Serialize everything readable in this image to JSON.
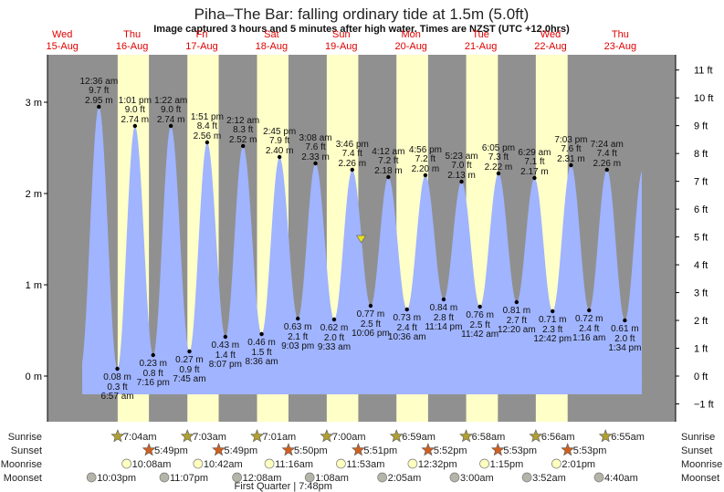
{
  "title": "Piha–The Bar: falling  ordinary tide at 1.5m (5.0ft)",
  "subtitle": "Image captured 3 hours and 5 minutes after high water. Times are NZST (UTC +12.0hrs)",
  "colors": {
    "night": "#909090",
    "day": "#ffffc8",
    "water": "#a0b4ff",
    "day_label": "#e00000",
    "sunrise": "#b0a030",
    "sunset": "#d06020",
    "moonrise": "#ffffc0",
    "moonset": "#b4b4a8",
    "marker": "#e8e020"
  },
  "days": [
    {
      "name": "Wed",
      "date": "15-Aug"
    },
    {
      "name": "Thu",
      "date": "16-Aug"
    },
    {
      "name": "Fri",
      "date": "17-Aug"
    },
    {
      "name": "Sat",
      "date": "18-Aug"
    },
    {
      "name": "Sun",
      "date": "19-Aug"
    },
    {
      "name": "Mon",
      "date": "20-Aug"
    },
    {
      "name": "Tue",
      "date": "21-Aug"
    },
    {
      "name": "Wed",
      "date": "22-Aug"
    },
    {
      "name": "Thu",
      "date": "23-Aug"
    }
  ],
  "chart_data": {
    "type": "area",
    "title": "Piha–The Bar: falling  ordinary tide at 1.5m (5.0ft)",
    "left_axis": {
      "unit": "m",
      "ticks": [
        "-1",
        "0 m",
        "1 m",
        "2 m",
        "3 m"
      ],
      "values": [
        0,
        1,
        2,
        3
      ],
      "ylim": [
        -0.5,
        3.5
      ]
    },
    "right_axis": {
      "unit": "ft",
      "ticks": [
        "−1 ft",
        "0 ft",
        "1 ft",
        "2 ft",
        "3 ft",
        "4 ft",
        "5 ft",
        "6 ft",
        "7 ft",
        "8 ft",
        "9 ft",
        "10 ft",
        "11 ft"
      ],
      "values": [
        -1,
        0,
        1,
        2,
        3,
        4,
        5,
        6,
        7,
        8,
        9,
        10,
        11
      ]
    },
    "current": {
      "height_m": 1.5,
      "day": 4,
      "time": "6:51pm",
      "state": "falling"
    },
    "extremes": [
      {
        "type": "high",
        "day": 1,
        "time": "12:36 am",
        "m": "2.95 m",
        "ft": "9.7 ft",
        "v": 2.95
      },
      {
        "type": "low",
        "day": 1,
        "time": "6:57 am",
        "m": "0.08 m",
        "ft": "0.3 ft",
        "v": 0.08
      },
      {
        "type": "high",
        "day": 1,
        "time": "1:01 pm",
        "m": "2.74 m",
        "ft": "9.0 ft",
        "v": 2.74
      },
      {
        "type": "low",
        "day": 1,
        "time": "7:16 pm",
        "m": "0.23 m",
        "ft": "0.8 ft",
        "v": 0.23
      },
      {
        "type": "high",
        "day": 2,
        "time": "1:22 am",
        "m": "2.74 m",
        "ft": "9.0 ft",
        "v": 2.74
      },
      {
        "type": "low",
        "day": 2,
        "time": "7:45 am",
        "m": "0.27 m",
        "ft": "0.9 ft",
        "v": 0.27
      },
      {
        "type": "high",
        "day": 2,
        "time": "1:51 pm",
        "m": "2.56 m",
        "ft": "8.4 ft",
        "v": 2.56
      },
      {
        "type": "low",
        "day": 2,
        "time": "8:07 pm",
        "m": "0.43 m",
        "ft": "1.4 ft",
        "v": 0.43
      },
      {
        "type": "high",
        "day": 3,
        "time": "2:12 am",
        "m": "2.52 m",
        "ft": "8.3 ft",
        "v": 2.52
      },
      {
        "type": "low",
        "day": 3,
        "time": "8:36 am",
        "m": "0.46 m",
        "ft": "1.5 ft",
        "v": 0.46
      },
      {
        "type": "high",
        "day": 3,
        "time": "2:45 pm",
        "m": "2.40 m",
        "ft": "7.9 ft",
        "v": 2.4
      },
      {
        "type": "low",
        "day": 3,
        "time": "9:03 pm",
        "m": "0.63 m",
        "ft": "2.1 ft",
        "v": 0.63
      },
      {
        "type": "high",
        "day": 4,
        "time": "3:08 am",
        "m": "2.33 m",
        "ft": "7.6 ft",
        "v": 2.33
      },
      {
        "type": "low",
        "day": 4,
        "time": "9:33 am",
        "m": "0.62 m",
        "ft": "2.0 ft",
        "v": 0.62
      },
      {
        "type": "high",
        "day": 4,
        "time": "3:46 pm",
        "m": "2.26 m",
        "ft": "7.4 ft",
        "v": 2.26
      },
      {
        "type": "low",
        "day": 4,
        "time": "10:06 pm",
        "m": "0.77 m",
        "ft": "2.5 ft",
        "v": 0.77
      },
      {
        "type": "high",
        "day": 5,
        "time": "4:12 am",
        "m": "2.18 m",
        "ft": "7.2 ft",
        "v": 2.18
      },
      {
        "type": "low",
        "day": 5,
        "time": "10:36 am",
        "m": "0.73 m",
        "ft": "2.4 ft",
        "v": 0.73
      },
      {
        "type": "high",
        "day": 5,
        "time": "4:56 pm",
        "m": "2.20 m",
        "ft": "7.2 ft",
        "v": 2.2
      },
      {
        "type": "low",
        "day": 5,
        "time": "11:14 pm",
        "m": "0.84 m",
        "ft": "2.8 ft",
        "v": 0.84
      },
      {
        "type": "high",
        "day": 6,
        "time": "5:23 am",
        "m": "2.13 m",
        "ft": "7.0 ft",
        "v": 2.13
      },
      {
        "type": "low",
        "day": 6,
        "time": "11:42 am",
        "m": "0.76 m",
        "ft": "2.5 ft",
        "v": 0.76
      },
      {
        "type": "high",
        "day": 6,
        "time": "6:05 pm",
        "m": "2.22 m",
        "ft": "7.3 ft",
        "v": 2.22
      },
      {
        "type": "low",
        "day": 7,
        "time": "12:20 am",
        "m": "0.81 m",
        "ft": "2.7 ft",
        "v": 0.81
      },
      {
        "type": "high",
        "day": 7,
        "time": "6:29 am",
        "m": "2.17 m",
        "ft": "7.1 ft",
        "v": 2.17
      },
      {
        "type": "low",
        "day": 7,
        "time": "12:42 pm",
        "m": "0.71 m",
        "ft": "2.3 ft",
        "v": 0.71
      },
      {
        "type": "high",
        "day": 7,
        "time": "7:03 pm",
        "m": "2.31 m",
        "ft": "7.6 ft",
        "v": 2.31
      },
      {
        "type": "low",
        "day": 8,
        "time": "1:16 am",
        "m": "0.72 m",
        "ft": "2.4 ft",
        "v": 0.72
      },
      {
        "type": "high",
        "day": 8,
        "time": "7:24 am",
        "m": "2.26 m",
        "ft": "7.4 ft",
        "v": 2.26
      },
      {
        "type": "low",
        "day": 8,
        "time": "1:34 pm",
        "m": "0.61 m",
        "ft": "2.0 ft",
        "v": 0.61
      }
    ]
  },
  "rows": {
    "sunrise": {
      "label": "Sunrise",
      "items": [
        {
          "day": 1,
          "time": "7:04am"
        },
        {
          "day": 2,
          "time": "7:03am"
        },
        {
          "day": 3,
          "time": "7:01am"
        },
        {
          "day": 4,
          "time": "7:00am"
        },
        {
          "day": 5,
          "time": "6:59am"
        },
        {
          "day": 6,
          "time": "6:58am"
        },
        {
          "day": 7,
          "time": "6:56am"
        },
        {
          "day": 8,
          "time": "6:55am"
        }
      ]
    },
    "sunset": {
      "label": "Sunset",
      "items": [
        {
          "day": 1,
          "time": "5:49pm"
        },
        {
          "day": 2,
          "time": "5:49pm"
        },
        {
          "day": 3,
          "time": "5:50pm"
        },
        {
          "day": 4,
          "time": "5:51pm"
        },
        {
          "day": 5,
          "time": "5:52pm"
        },
        {
          "day": 6,
          "time": "5:53pm"
        },
        {
          "day": 7,
          "time": "5:53pm"
        }
      ]
    },
    "moonrise": {
      "label": "Moonrise",
      "items": [
        {
          "day": 1,
          "time": "10:08am"
        },
        {
          "day": 2,
          "time": "10:42am"
        },
        {
          "day": 3,
          "time": "11:16am"
        },
        {
          "day": 4,
          "time": "11:53am"
        },
        {
          "day": 5,
          "time": "12:32pm"
        },
        {
          "day": 6,
          "time": "1:15pm"
        },
        {
          "day": 7,
          "time": "2:01pm"
        }
      ]
    },
    "moonset": {
      "label": "Moonset",
      "items": [
        {
          "day": 0,
          "time": "10:03pm"
        },
        {
          "day": 1,
          "time": "11:07pm"
        },
        {
          "day": 3,
          "time": "12:08am"
        },
        {
          "day": 4,
          "time": "1:08am"
        },
        {
          "day": 5,
          "time": "2:05am"
        },
        {
          "day": 6,
          "time": "3:00am"
        },
        {
          "day": 7,
          "time": "3:52am"
        },
        {
          "day": 8,
          "time": "4:40am"
        }
      ]
    }
  },
  "moon_phase": {
    "label": "First Quarter | 7:48pm",
    "day": 3,
    "time": "7:48pm"
  }
}
